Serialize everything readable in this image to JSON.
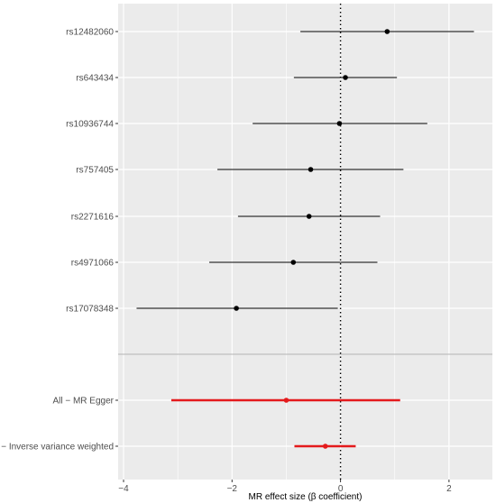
{
  "chart_data": {
    "type": "forest",
    "xlabel": "MR effect size (β coefficient)",
    "xlim": [
      -4.1,
      2.8
    ],
    "x_ticks": [
      -4,
      -2,
      0,
      2
    ],
    "x_tick_labels": [
      "−4",
      "−2",
      "0",
      "2"
    ],
    "reference_line": 0,
    "grid": true,
    "colors": {
      "panel_background": "#ebebeb",
      "grid_line": "#ffffff",
      "snp_series": "#000000",
      "summary_series": "#e41a1c",
      "separator": "#b3b3b3"
    },
    "snps": [
      {
        "label": "rs12482060",
        "estimate": 0.86,
        "ci_low": -0.74,
        "ci_high": 2.46
      },
      {
        "label": "rs643434",
        "estimate": 0.09,
        "ci_low": -0.86,
        "ci_high": 1.04
      },
      {
        "label": "rs10936744",
        "estimate": -0.02,
        "ci_low": -1.62,
        "ci_high": 1.6
      },
      {
        "label": "rs757405",
        "estimate": -0.55,
        "ci_low": -2.27,
        "ci_high": 1.16
      },
      {
        "label": "rs2271616",
        "estimate": -0.58,
        "ci_low": -1.89,
        "ci_high": 0.73
      },
      {
        "label": "rs4971066",
        "estimate": -0.87,
        "ci_low": -2.42,
        "ci_high": 0.68
      },
      {
        "label": "rs17078348",
        "estimate": -1.92,
        "ci_low": -3.76,
        "ci_high": -0.05
      }
    ],
    "summary": [
      {
        "label": "All − MR Egger",
        "estimate": -1.0,
        "ci_low": -3.12,
        "ci_high": 1.1
      },
      {
        "label": "All − Inverse variance weighted",
        "estimate": -0.28,
        "ci_low": -0.85,
        "ci_high": 0.28
      }
    ]
  }
}
